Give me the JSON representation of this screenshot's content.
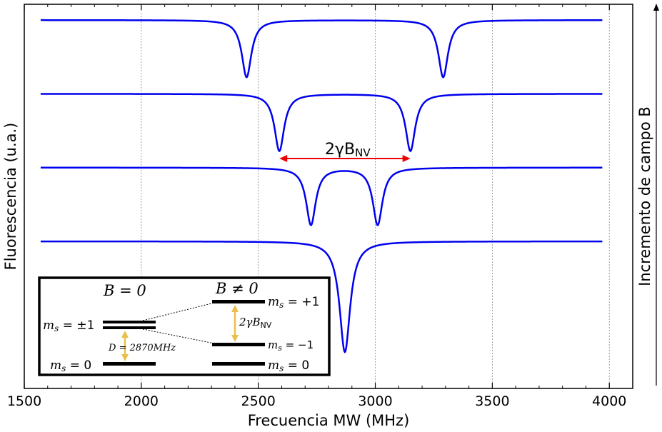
{
  "chart_data": {
    "type": "line",
    "xlabel": "Frecuencia MW (MHz)",
    "ylabel": "Fluorescencia (u.a.)",
    "right_label": "Incremento de campo B",
    "xlim": [
      1500,
      4100
    ],
    "x_ticks": [
      "1500",
      "2000",
      "2500",
      "3000",
      "3500",
      "4000"
    ],
    "grid": "vertical dashed",
    "x_range": [
      1570,
      3970
    ],
    "series": [
      {
        "offset": 3,
        "dips": [
          {
            "center": 2450,
            "depth": 0.8,
            "width": 50
          },
          {
            "center": 3290,
            "depth": 0.8,
            "width": 50
          }
        ]
      },
      {
        "offset": 2,
        "dips": [
          {
            "center": 2590,
            "depth": 0.8,
            "width": 50
          },
          {
            "center": 3150,
            "depth": 0.8,
            "width": 50
          }
        ]
      },
      {
        "offset": 1,
        "dips": [
          {
            "center": 2725,
            "depth": 0.8,
            "width": 50
          },
          {
            "center": 3010,
            "depth": 0.8,
            "width": 50
          }
        ]
      },
      {
        "offset": 0,
        "dips": [
          {
            "center": 2870,
            "depth": 1.55,
            "width": 55
          }
        ]
      }
    ],
    "line_color": "#0000ee",
    "annotation": {
      "label_main": "2γB",
      "label_sub": "NV",
      "from": 2590,
      "to": 3150,
      "color": "#ee0000"
    }
  },
  "inset": {
    "title_left": "B = 0",
    "title_right": "B ≠ 0",
    "label_pm1": "m",
    "label_pm1_tail": " = ±1",
    "label_zero_left": "m",
    "label_zero_left_tail": " = 0",
    "label_plus1": "m",
    "label_plus1_tail": " = +1",
    "label_minus1": "m",
    "label_minus1_tail": " = −1",
    "label_zero_right": "m",
    "label_zero_right_tail": " = 0",
    "sub_s": "s",
    "split_main": "2γB",
    "split_sub": "NV",
    "zfs_label": "D = 2870MHz",
    "arrow_color": "#e8c04a"
  }
}
